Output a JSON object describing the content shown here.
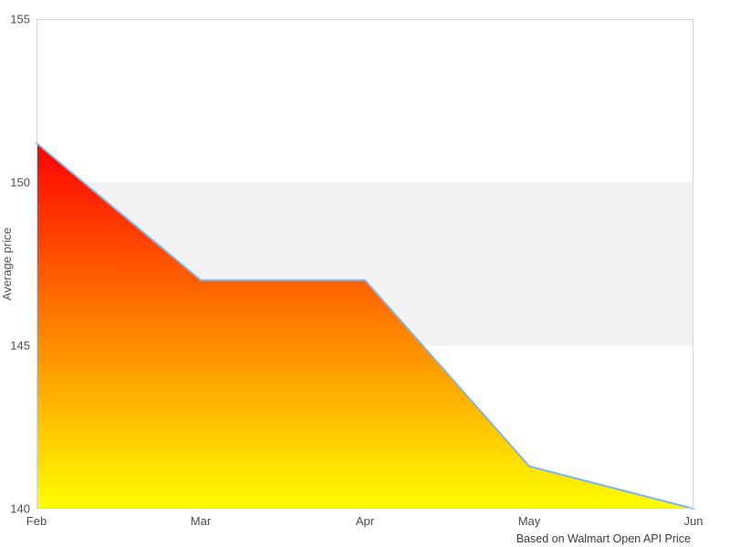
{
  "chart_data": {
    "type": "area",
    "title": "",
    "xlabel": "",
    "ylabel": "Average price",
    "categories": [
      "Feb",
      "Mar",
      "Apr",
      "May",
      "Jun"
    ],
    "series": [
      {
        "name": "Average price",
        "values": [
          151.2,
          147,
          147,
          141.3,
          140
        ]
      }
    ],
    "ylim": [
      140,
      155
    ],
    "yticks": [
      140,
      145,
      150,
      155
    ],
    "grid": false,
    "legend": "none",
    "plot_band": {
      "from": 145,
      "to": 150,
      "color": "#f2f2f2"
    },
    "credits": "Based on Walmart Open API Price",
    "colors": {
      "line": "#7cb5ec",
      "area_gradient_top": "#ff0000",
      "area_gradient_bottom": "#ffff00",
      "plot_border": "#d6d6d6",
      "axis_line": "#cccccc",
      "axis_label": "#4d4d4d",
      "axis_title": "#555555",
      "credits_text": "#3c3c3c",
      "background": "#ffffff"
    }
  }
}
